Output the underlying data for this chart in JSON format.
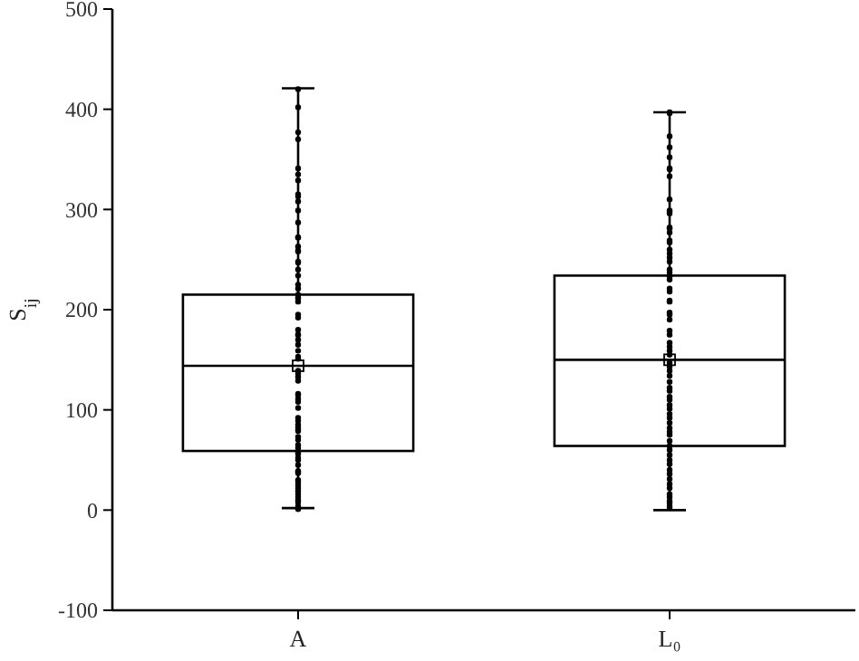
{
  "chart_data": {
    "type": "box",
    "ylabel": "S$_{ij}$",
    "categories": [
      "A",
      "L₀"
    ],
    "ylim": [
      -100,
      500
    ],
    "yticks": [
      -100,
      0,
      100,
      200,
      300,
      400,
      500
    ],
    "grid": false,
    "boxes": [
      {
        "low": 2,
        "q1": 59,
        "median": 144,
        "q3": 215,
        "high": 421,
        "mean": 144
      },
      {
        "low": 0,
        "q1": 64,
        "median": 150,
        "q3": 234,
        "high": 397,
        "mean": 150
      }
    ],
    "series": [
      {
        "type": "scatter",
        "color": "#000000",
        "marker": "circle",
        "x": [
          "A",
          "A",
          "A",
          "A",
          "A",
          "A",
          "A",
          "A",
          "A",
          "A",
          "A",
          "A",
          "A",
          "A",
          "A",
          "A",
          "A",
          "A",
          "A",
          "A",
          "A",
          "A",
          "A",
          "A",
          "A",
          "A",
          "A",
          "A",
          "A",
          "A",
          "A",
          "A",
          "A",
          "A",
          "A",
          "A",
          "A",
          "A",
          "A",
          "A",
          "A",
          "A",
          "A",
          "A",
          "A",
          "A",
          "A",
          "A",
          "A",
          "A",
          "A",
          "A",
          "A",
          "A",
          "A",
          "A",
          "A",
          "A",
          "A",
          "A",
          "A",
          "A",
          "A",
          "A",
          "A",
          "A",
          "A",
          "A",
          "A",
          "A",
          "A",
          "A",
          "A",
          "A",
          "A"
        ],
        "values": [
          420,
          402,
          377,
          370,
          341,
          335,
          329,
          315,
          313,
          308,
          299,
          287,
          272,
          272,
          263,
          259,
          258,
          248,
          247,
          240,
          234,
          225,
          221,
          215,
          212,
          211,
          208,
          195,
          192,
          180,
          175,
          175,
          170,
          165,
          159,
          153,
          151,
          139,
          136,
          133,
          129,
          116,
          115,
          111,
          108,
          102,
          92,
          89,
          85,
          82,
          80,
          79,
          73,
          70,
          65,
          62,
          58,
          56,
          52,
          50,
          45,
          39,
          38,
          37,
          30,
          28,
          25,
          22,
          19,
          16,
          13,
          10,
          8,
          4,
          1
        ]
      },
      {
        "type": "scatter",
        "color": "#000000",
        "marker": "circle",
        "x": [
          "L₀",
          "L₀",
          "L₀",
          "L₀",
          "L₀",
          "L₀",
          "L₀",
          "L₀",
          "L₀",
          "L₀",
          "L₀",
          "L₀",
          "L₀",
          "L₀",
          "L₀",
          "L₀",
          "L₀",
          "L₀",
          "L₀",
          "L₀",
          "L₀",
          "L₀",
          "L₀",
          "L₀",
          "L₀",
          "L₀",
          "L₀",
          "L₀",
          "L₀",
          "L₀",
          "L₀",
          "L₀",
          "L₀",
          "L₀",
          "L₀",
          "L₀",
          "L₀",
          "L₀",
          "L₀",
          "L₀",
          "L₀",
          "L₀",
          "L₀",
          "L₀",
          "L₀",
          "L₀",
          "L₀",
          "L₀",
          "L₀",
          "L₀",
          "L₀",
          "L₀",
          "L₀",
          "L₀",
          "L₀",
          "L₀",
          "L₀",
          "L₀",
          "L₀",
          "L₀",
          "L₀",
          "L₀",
          "L₀",
          "L₀",
          "L₀",
          "L₀",
          "L₀",
          "L₀",
          "L₀",
          "L₀",
          "L₀",
          "L₀"
        ],
        "values": [
          397,
          396,
          373,
          362,
          352,
          341,
          340,
          333,
          310,
          299,
          298,
          296,
          282,
          281,
          277,
          269,
          267,
          260,
          256,
          252,
          248,
          240,
          237,
          233,
          230,
          221,
          218,
          209,
          208,
          197,
          195,
          190,
          179,
          175,
          167,
          163,
          159,
          155,
          147,
          143,
          139,
          134,
          128,
          122,
          119,
          113,
          110,
          105,
          101,
          96,
          92,
          87,
          82,
          78,
          75,
          69,
          64,
          60,
          55,
          50,
          46,
          40,
          36,
          31,
          26,
          22,
          16,
          13,
          9,
          7,
          4,
          2
        ]
      }
    ]
  }
}
